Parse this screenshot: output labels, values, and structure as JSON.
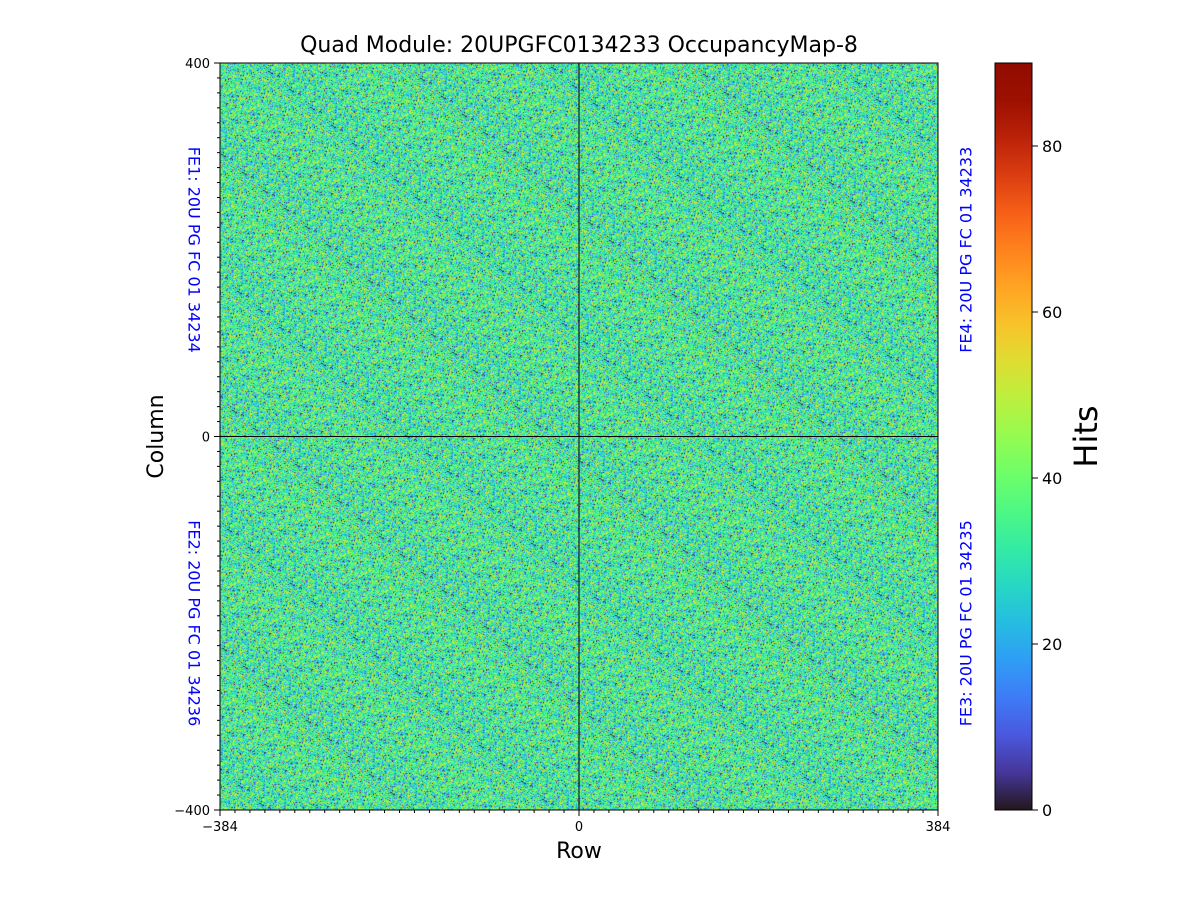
{
  "chart_data": {
    "type": "heatmap",
    "title": "Quad Module: 20UPGFC0134233 OccupancyMap-8",
    "xlabel": "Row",
    "ylabel": "Column",
    "xlim": [
      -384,
      384
    ],
    "ylim": [
      -400,
      400
    ],
    "x_ticks": [
      "−384",
      "0",
      "384"
    ],
    "x_tick_values": [
      -384,
      0,
      384
    ],
    "y_ticks": [
      "400",
      "0",
      "−400"
    ],
    "y_tick_values": [
      400,
      0,
      -400
    ],
    "colorbar": {
      "label": "Hits",
      "range": [
        0,
        90
      ],
      "ticks": [
        0,
        20,
        40,
        60,
        80
      ],
      "colormap": "turbo"
    },
    "value_distribution": {
      "typical_min": 0,
      "typical_max": 55,
      "mean": 34,
      "spread": 11
    },
    "quadrants": [
      {
        "name": "FE1",
        "label": "FE1: 20U PG FC 01 34234",
        "position": "top-left",
        "label_color": "#0000ff"
      },
      {
        "name": "FE4",
        "label": "FE4: 20U PG FC 01 34233",
        "position": "top-right",
        "label_color": "#0000ff"
      },
      {
        "name": "FE2",
        "label": "FE2: 20U PG FC 01 34236",
        "position": "bottom-left",
        "label_color": "#0000ff"
      },
      {
        "name": "FE3",
        "label": "FE3: 20U PG FC 01 34235",
        "position": "bottom-right",
        "label_color": "#0000ff"
      }
    ],
    "divider_lines": {
      "x": 0,
      "y": 0,
      "color": "#000000"
    }
  }
}
